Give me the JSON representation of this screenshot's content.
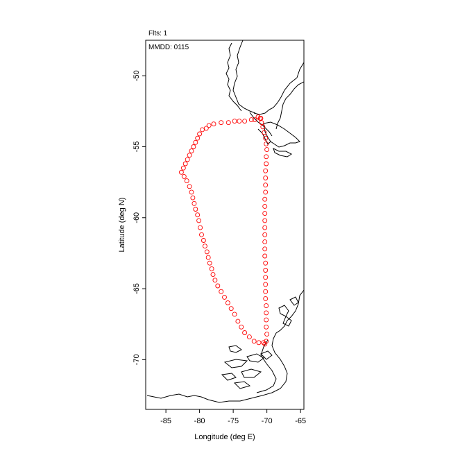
{
  "header": {
    "flights_label": "Flts: 1",
    "date_label": "MMDD: 0115"
  },
  "axes": {
    "xlabel": "Longitude (deg E)",
    "ylabel": "Latitude (deg N)",
    "xlim": [
      -88,
      -64.5
    ],
    "ylim": [
      -73.5,
      -47.5
    ],
    "xticks": [
      -85,
      -80,
      -75,
      -70,
      -65
    ],
    "yticks": [
      -50,
      -55,
      -60,
      -65,
      -70
    ]
  },
  "colors": {
    "track": "#ff0000",
    "coast": "#000000",
    "frame": "#000000"
  },
  "chart_data": {
    "type": "scatter",
    "title": "",
    "xlabel": "Longitude (deg E)",
    "ylabel": "Latitude (deg N)",
    "xlim": [
      -88,
      -64.5
    ],
    "ylim": [
      -73.5,
      -47.5
    ],
    "marker": "open circle",
    "grid": false,
    "flight_track": [
      [
        -70.9,
        -53.0
      ],
      [
        -71.3,
        -52.9
      ],
      [
        -71.8,
        -53.1
      ],
      [
        -72.3,
        -53.1
      ],
      [
        -73.3,
        -53.2
      ],
      [
        -74.1,
        -53.2
      ],
      [
        -74.8,
        -53.2
      ],
      [
        -75.7,
        -53.3
      ],
      [
        -76.8,
        -53.3
      ],
      [
        -77.9,
        -53.4
      ],
      [
        -78.6,
        -53.5
      ],
      [
        -79.0,
        -53.7
      ],
      [
        -79.6,
        -53.8
      ],
      [
        -80.0,
        -54.1
      ],
      [
        -80.3,
        -54.4
      ],
      [
        -80.6,
        -54.7
      ],
      [
        -80.9,
        -55.0
      ],
      [
        -81.2,
        -55.3
      ],
      [
        -81.5,
        -55.6
      ],
      [
        -81.8,
        -55.9
      ],
      [
        -82.1,
        -56.2
      ],
      [
        -82.4,
        -56.5
      ],
      [
        -82.7,
        -56.8
      ],
      [
        -82.3,
        -57.1
      ],
      [
        -81.9,
        -57.4
      ],
      [
        -81.5,
        -57.8
      ],
      [
        -81.2,
        -58.2
      ],
      [
        -81.0,
        -58.6
      ],
      [
        -80.8,
        -59.0
      ],
      [
        -80.6,
        -59.4
      ],
      [
        -80.3,
        -59.8
      ],
      [
        -80.1,
        -60.2
      ],
      [
        -79.9,
        -60.7
      ],
      [
        -79.7,
        -61.2
      ],
      [
        -79.4,
        -61.6
      ],
      [
        -79.2,
        -62.0
      ],
      [
        -78.9,
        -62.4
      ],
      [
        -78.7,
        -62.8
      ],
      [
        -78.5,
        -63.2
      ],
      [
        -78.2,
        -63.6
      ],
      [
        -78.0,
        -64.0
      ],
      [
        -77.7,
        -64.4
      ],
      [
        -77.3,
        -64.8
      ],
      [
        -76.8,
        -65.2
      ],
      [
        -76.3,
        -65.6
      ],
      [
        -75.8,
        -66.0
      ],
      [
        -75.3,
        -66.4
      ],
      [
        -74.8,
        -66.8
      ],
      [
        -74.3,
        -67.3
      ],
      [
        -73.8,
        -67.7
      ],
      [
        -73.3,
        -68.1
      ],
      [
        -72.6,
        -68.4
      ],
      [
        -71.9,
        -68.7
      ],
      [
        -71.2,
        -68.8
      ],
      [
        -70.5,
        -68.8
      ],
      [
        -70.1,
        -68.7
      ],
      [
        -70.3,
        -68.9
      ],
      [
        -70.0,
        -68.2
      ],
      [
        -70.1,
        -67.7
      ],
      [
        -70.1,
        -67.2
      ],
      [
        -70.1,
        -66.7
      ],
      [
        -70.1,
        -66.2
      ],
      [
        -70.2,
        -65.7
      ],
      [
        -70.2,
        -65.2
      ],
      [
        -70.2,
        -64.7
      ],
      [
        -70.2,
        -64.2
      ],
      [
        -70.2,
        -63.7
      ],
      [
        -70.2,
        -63.2
      ],
      [
        -70.3,
        -62.7
      ],
      [
        -70.3,
        -62.2
      ],
      [
        -70.3,
        -61.7
      ],
      [
        -70.3,
        -61.2
      ],
      [
        -70.3,
        -60.7
      ],
      [
        -70.3,
        -60.2
      ],
      [
        -70.3,
        -59.7
      ],
      [
        -70.3,
        -59.2
      ],
      [
        -70.3,
        -58.7
      ],
      [
        -70.2,
        -58.2
      ],
      [
        -70.2,
        -57.7
      ],
      [
        -70.2,
        -57.2
      ],
      [
        -70.2,
        -56.7
      ],
      [
        -70.1,
        -56.2
      ],
      [
        -70.1,
        -55.7
      ],
      [
        -70.0,
        -55.2
      ],
      [
        -70.1,
        -54.8
      ],
      [
        -70.2,
        -54.4
      ],
      [
        -70.4,
        -54.0
      ],
      [
        -70.6,
        -53.6
      ],
      [
        -70.8,
        -53.3
      ],
      [
        -71.0,
        -53.0
      ]
    ]
  }
}
